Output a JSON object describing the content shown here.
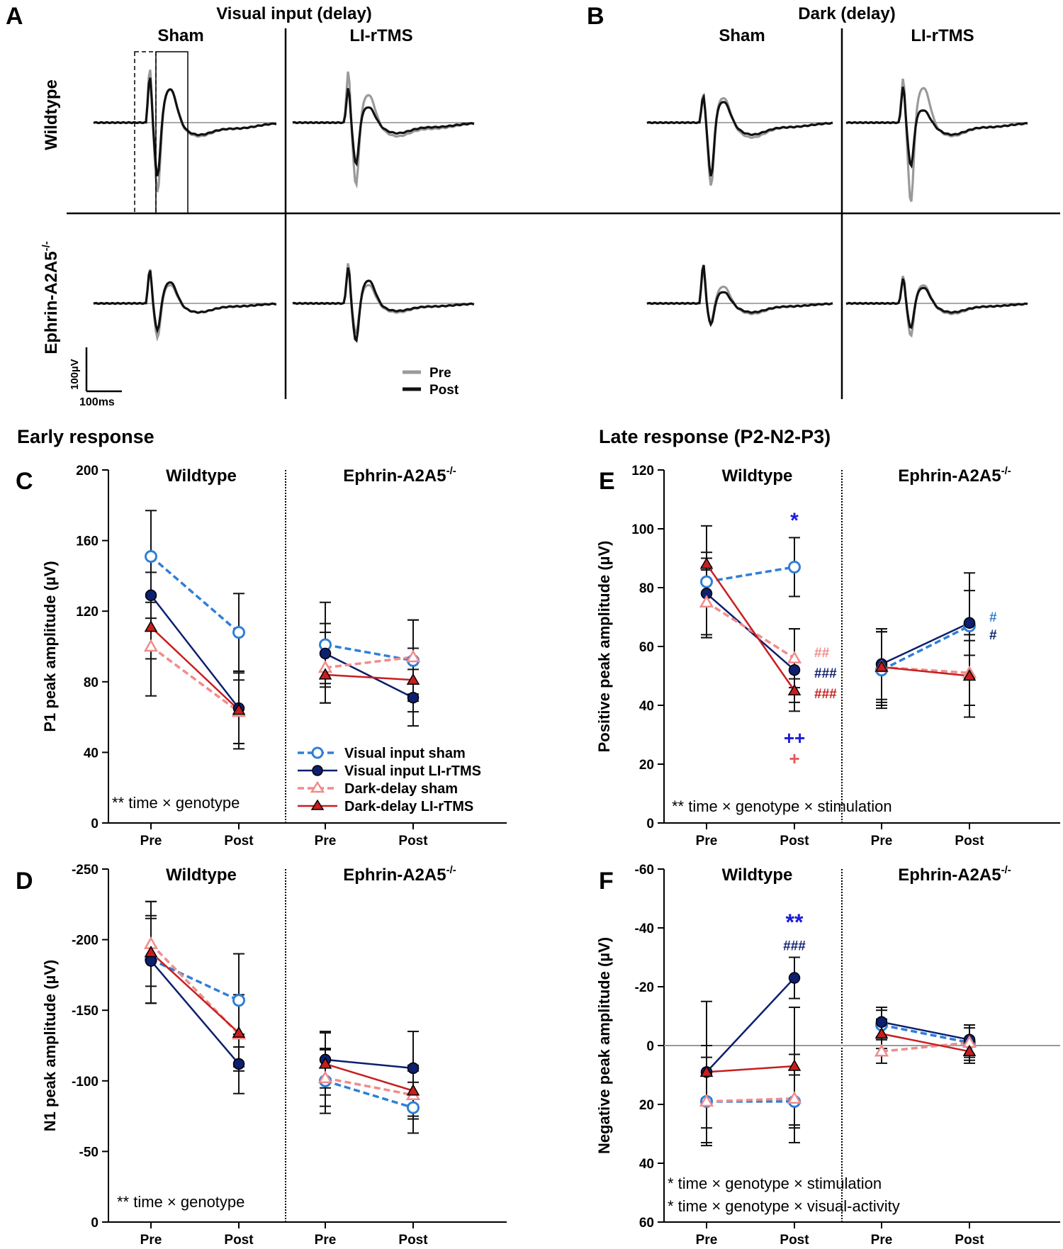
{
  "panels": {
    "A": "A",
    "B": "B",
    "C": "C",
    "D": "D",
    "E": "E",
    "F": "F"
  },
  "traces": {
    "A_title": "Visual input (delay)",
    "B_title": "Dark (delay)",
    "sham": "Sham",
    "rtms": "LI-rTMS",
    "row_wt": "Wildtype",
    "row_ko": "Ephrin-A2A5",
    "row_ko_sup": "-/-",
    "scale_y": "100µV",
    "scale_x": "100ms",
    "legend_pre": "Pre",
    "legend_post": "Post",
    "colors": {
      "pre": "#9a9a9a",
      "post": "#111111"
    }
  },
  "sections": {
    "early": "Early response",
    "late": "Late response (P2-N2-P3)"
  },
  "legend": {
    "visual_sham": "Visual input sham",
    "visual_rtms": "Visual input LI-rTMS",
    "dark_sham": "Dark-delay sham",
    "dark_rtms": "Dark-delay LI-rTMS"
  },
  "series_colors": {
    "visual_sham": "#2f7fd6",
    "visual_rtms": "#0d1f6e",
    "dark_sham": "#f08c8c",
    "dark_rtms": "#c81e1e"
  },
  "chart_data": [
    {
      "panel": "C",
      "type": "line",
      "ylabel": "P1 peak amplitude (µV)",
      "ylim": [
        0,
        200
      ],
      "yticks": [
        0,
        40,
        80,
        120,
        160,
        200
      ],
      "groups": [
        "Wildtype",
        "Ephrin-A2A5"
      ],
      "group_sup": "-/-",
      "categories": [
        "Pre",
        "Post"
      ],
      "annotation": "** time × genotype",
      "series": [
        {
          "key": "visual_sham",
          "name": "Visual input sham",
          "wt": [
            151,
            108
          ],
          "ko": [
            101,
            92
          ],
          "wt_err": [
            26,
            22
          ],
          "ko_err": [
            24,
            23
          ]
        },
        {
          "key": "visual_rtms",
          "name": "Visual input LI-rTMS",
          "wt": [
            129,
            65
          ],
          "ko": [
            96,
            71
          ],
          "wt_err": [
            13,
            20
          ],
          "ko_err": [
            17,
            16
          ]
        },
        {
          "key": "dark_sham",
          "name": "Dark-delay sham",
          "wt": [
            100,
            63
          ],
          "ko": [
            88,
            94
          ],
          "wt_err": [
            28,
            18
          ],
          "ko_err": [
            20,
            21
          ]
        },
        {
          "key": "dark_rtms",
          "name": "Dark-delay LI-rTMS",
          "wt": [
            111,
            64
          ],
          "ko": [
            84,
            81
          ],
          "wt_err": [
            18,
            22
          ],
          "ko_err": [
            16,
            18
          ]
        }
      ]
    },
    {
      "panel": "D",
      "type": "line",
      "ylabel": "N1 peak amplitude (µV)",
      "ylim": [
        0,
        -250
      ],
      "yticks": [
        0,
        -50,
        -100,
        -150,
        -200,
        -250
      ],
      "groups": [
        "Wildtype",
        "Ephrin-A2A5"
      ],
      "group_sup": "-/-",
      "categories": [
        "Pre",
        "Post"
      ],
      "annotation": "** time × genotype",
      "series": [
        {
          "key": "visual_sham",
          "name": "Visual input sham",
          "wt": [
            -186,
            -157
          ],
          "ko": [
            -100,
            -81
          ],
          "wt_err": [
            31,
            33
          ],
          "ko_err": [
            23,
            18
          ]
        },
        {
          "key": "visual_rtms",
          "name": "Visual input LI-rTMS",
          "wt": [
            -185,
            -112
          ],
          "ko": [
            -115,
            -109
          ],
          "wt_err": [
            30,
            21
          ],
          "ko_err": [
            20,
            26
          ]
        },
        {
          "key": "dark_sham",
          "name": "Dark-delay sham",
          "wt": [
            -197,
            -133
          ],
          "ko": [
            -102,
            -90
          ],
          "wt_err": [
            30,
            23
          ],
          "ko_err": [
            20,
            17
          ]
        },
        {
          "key": "dark_rtms",
          "name": "Dark-delay LI-rTMS",
          "wt": [
            -191,
            -134
          ],
          "ko": [
            -112,
            -93
          ],
          "wt_err": [
            36,
            27
          ],
          "ko_err": [
            22,
            18
          ]
        }
      ]
    },
    {
      "panel": "E",
      "type": "line",
      "ylabel": "Positive peak amplitude (µV)",
      "ylim": [
        0,
        120
      ],
      "yticks": [
        0,
        20,
        40,
        60,
        80,
        100,
        120
      ],
      "groups": [
        "Wildtype",
        "Ephrin-A2A5"
      ],
      "group_sup": "-/-",
      "categories": [
        "Pre",
        "Post"
      ],
      "annotation": "** time × genotype × stimulation",
      "series": [
        {
          "key": "visual_sham",
          "name": "Visual input sham",
          "wt": [
            82,
            87
          ],
          "ko": [
            52,
            67
          ],
          "wt_err": [
            19,
            10
          ],
          "ko_err": [
            13,
            18
          ]
        },
        {
          "key": "visual_rtms",
          "name": "Visual input LI-rTMS",
          "wt": [
            78,
            52
          ],
          "ko": [
            54,
            68
          ],
          "wt_err": [
            14,
            14
          ],
          "ko_err": [
            12,
            11
          ]
        },
        {
          "key": "dark_sham",
          "name": "Dark-delay sham",
          "wt": [
            75,
            56
          ],
          "ko": [
            53,
            51
          ],
          "wt_err": [
            12,
            10
          ],
          "ko_err": [
            12,
            11
          ]
        },
        {
          "key": "dark_rtms",
          "name": "Dark-delay LI-rTMS",
          "wt": [
            88,
            45
          ],
          "ko": [
            53,
            50
          ],
          "wt_err": [
            2,
            4
          ],
          "ko_err": [
            13,
            14
          ]
        }
      ],
      "markers": [
        {
          "text": "*",
          "color": "#1a1ad8",
          "value": 103,
          "offset": 0,
          "size": 30
        },
        {
          "text": "##",
          "color": "#f08c8c",
          "value": 58,
          "offset": 28,
          "size": 19
        },
        {
          "text": "###",
          "color": "#0d1f6e",
          "value": 51,
          "offset": 28,
          "size": 19
        },
        {
          "text": "###",
          "color": "#c81e1e",
          "value": 44,
          "offset": 28,
          "size": 19
        },
        {
          "text": "++",
          "color": "#1a1ad8",
          "value": 29,
          "offset": 0,
          "size": 26
        },
        {
          "text": "+",
          "color": "#e85a5a",
          "value": 22,
          "offset": 0,
          "size": 26
        },
        {
          "text": "#",
          "color": "#2f7fd6",
          "value": 70,
          "offset": 28,
          "size": 19
        },
        {
          "text": "#",
          "color": "#0d1f6e",
          "value": 64,
          "offset": 28,
          "size": 19
        }
      ]
    },
    {
      "panel": "F",
      "type": "line",
      "ylabel": "Negative peak amplitude (µV)",
      "ylim": [
        60,
        -60
      ],
      "yticks": [
        60,
        40,
        20,
        0,
        -20,
        -40,
        -60
      ],
      "groups": [
        "Wildtype",
        "Ephrin-A2A5"
      ],
      "group_sup": "-/-",
      "categories": [
        "Pre",
        "Post"
      ],
      "annotation": "* time × genotype × stimulation",
      "annotation2": "* time × genotype × visual-activity",
      "zero_line": true,
      "series": [
        {
          "key": "visual_sham",
          "name": "Visual input sham",
          "wt": [
            19,
            19
          ],
          "ko": [
            -7,
            -1
          ],
          "wt_err": [
            9,
            9
          ],
          "ko_err": [
            5,
            6
          ]
        },
        {
          "key": "visual_rtms",
          "name": "Visual input LI-rTMS",
          "wt": [
            9,
            -23
          ],
          "ko": [
            -8,
            -2
          ],
          "wt_err": [
            9,
            7
          ],
          "ko_err": [
            5,
            5
          ]
        },
        {
          "key": "dark_sham",
          "name": "Dark-delay sham",
          "wt": [
            19,
            18
          ],
          "ko": [
            2,
            -1
          ],
          "wt_err": [
            15,
            15
          ],
          "ko_err": [
            4,
            5
          ]
        },
        {
          "key": "dark_rtms",
          "name": "Dark-delay LI-rTMS",
          "wt": [
            9,
            7
          ],
          "ko": [
            -4,
            2
          ],
          "wt_err": [
            24,
            20
          ],
          "ko_err": [
            5,
            4
          ]
        }
      ],
      "markers": [
        {
          "text": "**",
          "color": "#1a1ad8",
          "value": -42,
          "offset": 0,
          "size": 32
        },
        {
          "text": "###",
          "color": "#0d1f6e",
          "value": -34,
          "offset": 0,
          "size": 19
        }
      ]
    }
  ]
}
